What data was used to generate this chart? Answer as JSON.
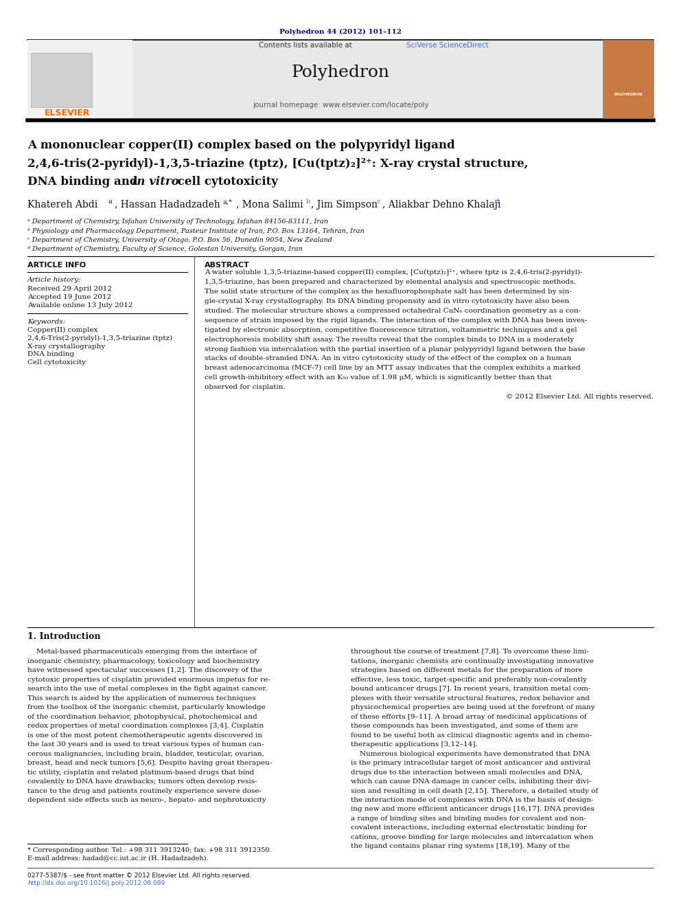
{
  "page_width": 9.92,
  "page_height": 13.23,
  "bg_color": "#ffffff",
  "journal_ref": "Polyhedron 44 (2012) 101–112",
  "journal_ref_color": "#00008B",
  "contents_text": "Contents lists available at ",
  "sciverse_text": "SciVerse ScienceDirect",
  "sciverse_color": "#4169E1",
  "journal_name": "Polyhedron",
  "journal_homepage": "journal homepage: www.elsevier.com/locate/poly",
  "header_bg": "#e8e8e8",
  "title_line1": "A mononuclear copper(II) complex based on the polypyridyl ligand",
  "title_line2": "2,4,6-tris(2-pyridyl)-1,3,5-triazine (tptz), [Cu(tptz)₂]²⁺: X-ray crystal structure,",
  "title_line3a": "DNA binding and ",
  "title_line3b": "in vitro",
  "title_line3c": " cell cytotoxicity",
  "affil_a": "ᵃ Department of Chemistry, Isfahan University of Technology, Isfahan 84156-83111, Iran",
  "affil_b": "ᵇ Physiology and Pharmacology Department, Pasteur Institute of Iran, P.O. Box 13164, Tehran, Iran",
  "affil_c": "ᶜ Department of Chemistry, University of Otago, P.O. Box 56, Dunedin 9054, New Zealand",
  "affil_d": "ᵈ Department of Chemistry, Faculty of Science, Golestan University, Gorgan, Iran",
  "article_info_title": "ARTICLE INFO",
  "abstract_title": "ABSTRACT",
  "article_history_label": "Article history:",
  "received": "Received 29 April 2012",
  "accepted": "Accepted 19 June 2012",
  "available": "Available online 13 July 2012",
  "keywords_label": "Keywords:",
  "keyword1": "Copper(II) complex",
  "keyword2": "2,4,6-Tris(2-pyridyl)-1,3,5-triazine (tptz)",
  "keyword3": "X-ray crystallography",
  "keyword4": "DNA binding",
  "keyword5": "Cell cytotoxicity",
  "copyright": "© 2012 Elsevier Ltd. All rights reserved.",
  "intro_heading": "1. Introduction",
  "footnote1": "* Corresponding author. Tel.: +98 311 3913240; fax: +98 311 3912350.",
  "footnote2": "E-mail address: hadad@cc.iut.ac.ir (H. Hadadzadeh).",
  "footer1": "0277-5387/$ - see front matter © 2012 Elsevier Ltd. All rights reserved.",
  "footer2": "http://dx.doi.org/10.1016/j.poly.2012.06.089",
  "abstract_lines": [
    "A water soluble 1,3,5-triazine-based copper(II) complex, [Cu(tptz)₂]²⁺, where tptz is 2,4,6-tris(2-pyridyl)-",
    "1,3,5-triazine, has been prepared and characterized by elemental analysis and spectroscopic methods.",
    "The solid state structure of the complex as the hexafluorophosphate salt has been determined by sin-",
    "gle-crystal X-ray crystallography. Its DNA binding propensity and in vitro cytotoxicity have also been",
    "studied. The molecular structure shows a compressed octahedral CuN₆ coordination geometry as a con-",
    "sequence of strain imposed by the rigid ligands. The interaction of the complex with DNA has been inves-",
    "tigated by electronic absorption, competitive fluorescence titration, voltammetric techniques and a gel",
    "electrophoresis mobility shift assay. The results reveal that the complex binds to DNA in a moderately",
    "strong fashion via intercalation with the partial insertion of a planar polypyridyl ligand between the base",
    "stacks of double-stranded DNA. An in vitro cytotoxicity study of the effect of the complex on a human",
    "breast adenocarcinoma (MCF-7) cell line by an MTT assay indicates that the complex exhibits a marked",
    "cell growth-inhibitory effect with an K₅₀ value of 1.98 μM, which is significantly better than that",
    "observed for cisplatin."
  ],
  "intro_col1_lines": [
    "    Metal-based pharmaceuticals emerging from the interface of",
    "inorganic chemistry, pharmacology, toxicology and biochemistry",
    "have witnessed spectacular successes [1,2]. The discovery of the",
    "cytotoxic properties of cisplatin provided enormous impetus for re-",
    "search into the use of metal complexes in the fight against cancer.",
    "This search is aided by the application of numerous techniques",
    "from the toolbox of the inorganic chemist, particularly knowledge",
    "of the coordination behavior, photophysical, photochemical and",
    "redox properties of metal coordination complexes [3,4]. Cisplatin",
    "is one of the most potent chemotherapeutic agents discovered in",
    "the last 30 years and is used to treat various types of human can-",
    "cerous malignancies, including brain, bladder, testicular, ovarian,",
    "breast, head and neck tumors [5,6]. Despite having great therapeu-",
    "tic utility, cisplatin and related platinum-based drugs that bind",
    "covalently to DNA have drawbacks; tumors often develop resis-",
    "tance to the drug and patients routinely experience severe dose-",
    "dependent side effects such as neuro-, hepato- and nephrotoxicity"
  ],
  "intro_col2_lines": [
    "throughout the course of treatment [7,8]. To overcome these limi-",
    "tations, inorganic chemists are continually investigating innovative",
    "strategies based on different metals for the preparation of more",
    "effective, less toxic, target-specific and preferably non-covalently",
    "bound anticancer drugs [7]. In recent years, transition metal com-",
    "plexes with their versatile structural features, redox behavior and",
    "physicochemical properties are being used at the forefront of many",
    "of these efforts [9–11]. A broad array of medicinal applications of",
    "these compounds has been investigated, and some of them are",
    "found to be useful both as clinical diagnostic agents and in chemo-",
    "therapeutic applications [3,12–14].",
    "    Numerous biological experiments have demonstrated that DNA",
    "is the primary intracellular target of most anticancer and antiviral",
    "drugs due to the interaction between small molecules and DNA,",
    "which can cause DNA damage in cancer cells, inhibiting their divi-",
    "sion and resulting in cell death [2,15]. Therefore, a detailed study of",
    "the interaction mode of complexes with DNA is the basis of design-",
    "ing new and more efficient anticancer drugs [16,17]. DNA provides",
    "a range of binding sites and binding modes for covalent and non-",
    "covalent interactions, including external electrostatic binding for",
    "cations, groove binding for large molecules and intercalation when",
    "the ligand contains planar ring systems [18,19]. Many of the"
  ]
}
